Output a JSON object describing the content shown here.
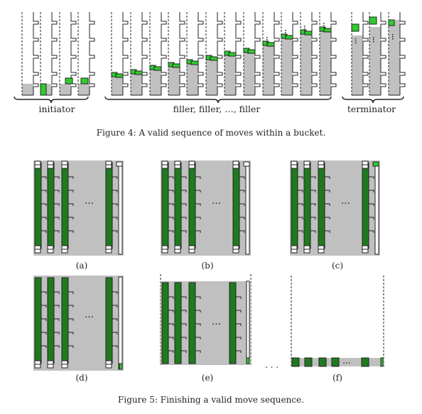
{
  "figure4": {
    "caption": "Figure 4: A valid sequence of moves within a bucket.",
    "group_labels": [
      "initiator",
      "filler, filler, …, filler",
      "terminator"
    ]
  },
  "figure5": {
    "caption": "Figure 5: Finishing a valid move sequence.",
    "panel_labels": [
      "(a)",
      "(b)",
      "(c)",
      "(d)",
      "(e)",
      "(f)"
    ],
    "ellipsis": "…",
    "between_ellipsis": ". . ."
  },
  "colors": {
    "gray": "#c0c0c0",
    "green": "#2ecc2e",
    "dark_green": "#1f7a1f",
    "line": "#222222"
  }
}
